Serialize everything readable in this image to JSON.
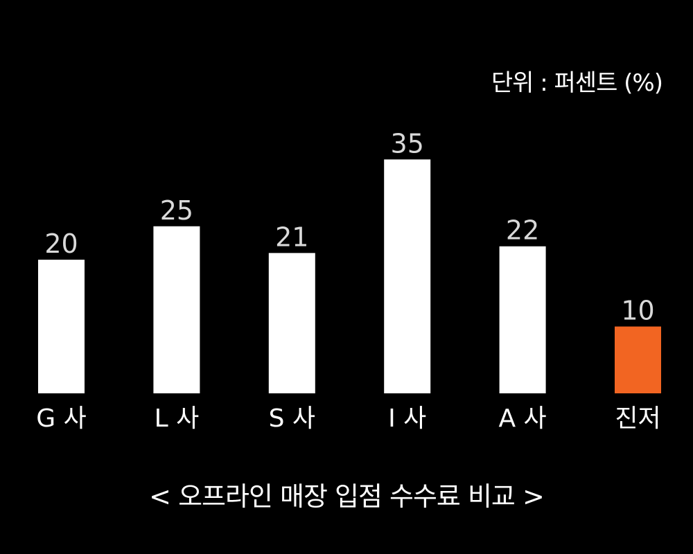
{
  "chart_data": {
    "type": "bar",
    "categories": [
      "G 사",
      "L 사",
      "S 사",
      "I 사",
      "A 사",
      "진저"
    ],
    "values": [
      20,
      25,
      21,
      35,
      22,
      10
    ],
    "ylim": [
      0,
      35
    ],
    "unit_label": "단위 : 퍼센트 (%)",
    "caption": "< 오프라인 매장 입점 수수료 비교 >",
    "grid": false,
    "legend": "none",
    "colors": {
      "background": "#000000",
      "bar_default": "#ffffff",
      "bar_highlight": "#f26522",
      "value_label": "#d9d9d9",
      "category_label": "#ffffff"
    },
    "highlight_category": "진저"
  }
}
